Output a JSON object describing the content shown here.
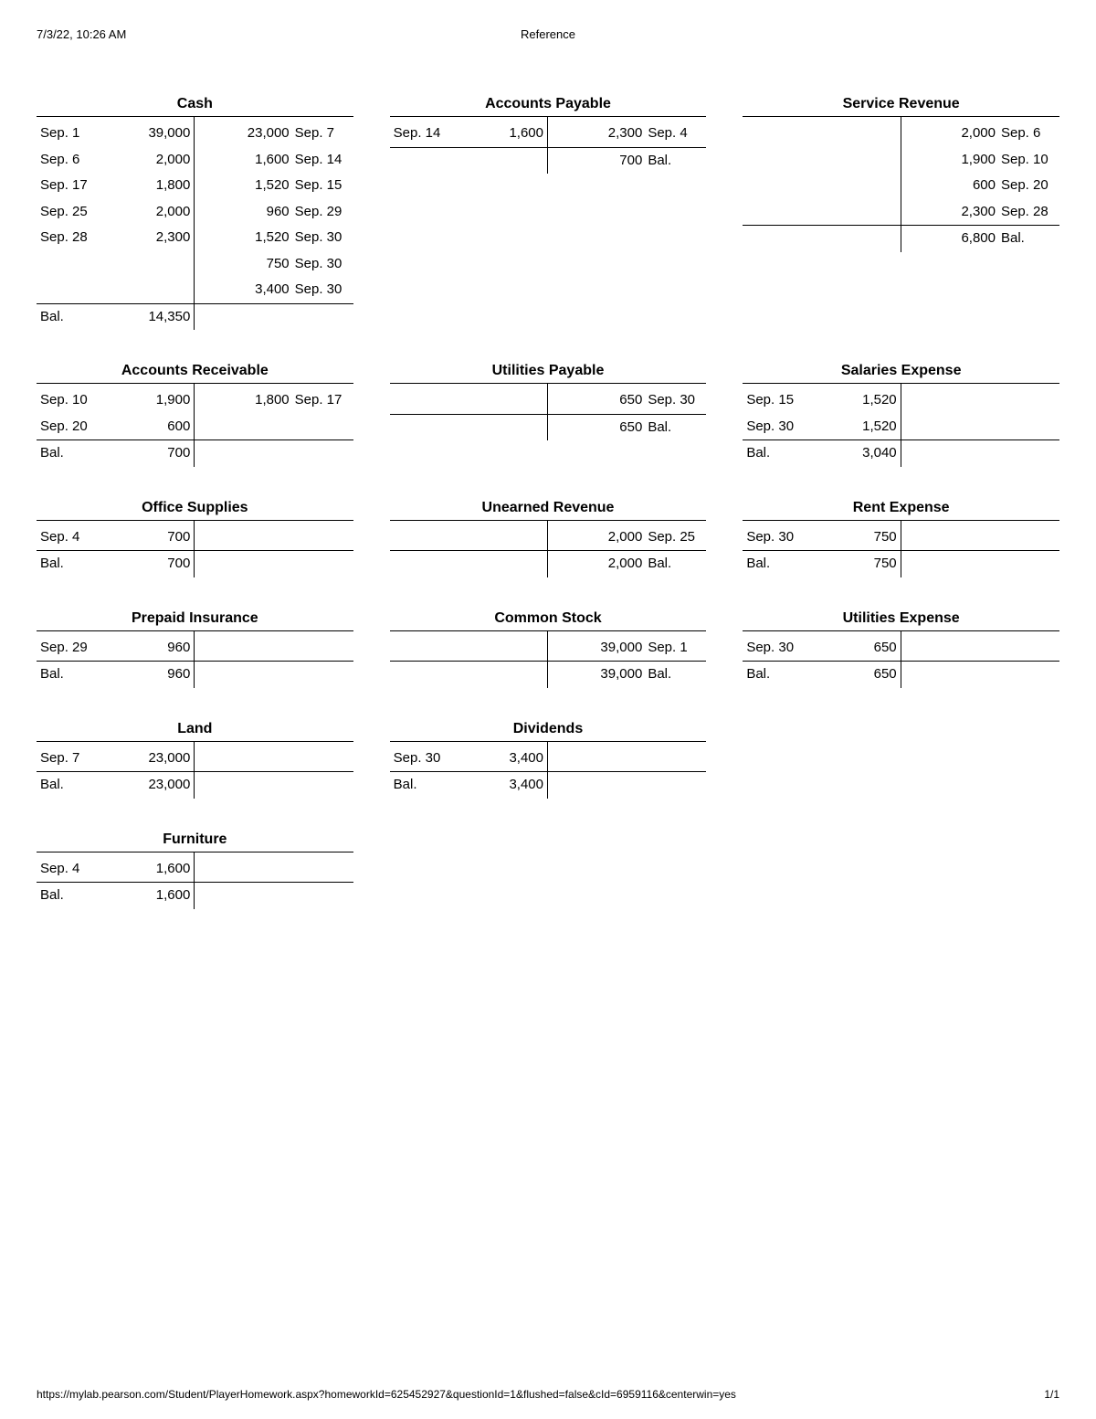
{
  "header": {
    "timestamp": "7/3/22, 10:26 AM",
    "title": "Reference"
  },
  "footer": {
    "url": "https://mylab.pearson.com/Student/PlayerHomework.aspx?homeworkId=625452927&questionId=1&flushed=false&cId=6959116&centerwin=yes",
    "page": "1/1"
  },
  "accounts": [
    {
      "title": "Cash",
      "debits": [
        {
          "date": "Sep. 1",
          "amt": "39,000"
        },
        {
          "date": "Sep. 6",
          "amt": "2,000"
        },
        {
          "date": "Sep. 17",
          "amt": "1,800"
        },
        {
          "date": "Sep. 25",
          "amt": "2,000"
        },
        {
          "date": "Sep. 28",
          "amt": "2,300"
        }
      ],
      "credits": [
        {
          "date": "Sep. 7",
          "amt": "23,000"
        },
        {
          "date": "Sep. 14",
          "amt": "1,600"
        },
        {
          "date": "Sep. 15",
          "amt": "1,520"
        },
        {
          "date": "Sep. 29",
          "amt": "960"
        },
        {
          "date": "Sep. 30",
          "amt": "1,520"
        },
        {
          "date": "Sep. 30",
          "amt": "750"
        },
        {
          "date": "Sep. 30",
          "amt": "3,400"
        }
      ],
      "bal_side": "debit",
      "bal_label": "Bal.",
      "bal_amt": "14,350"
    },
    {
      "title": "Accounts Payable",
      "debits": [
        {
          "date": "Sep. 14",
          "amt": "1,600"
        }
      ],
      "credits": [
        {
          "date": "Sep. 4",
          "amt": "2,300"
        }
      ],
      "bal_side": "credit",
      "bal_label": "Bal.",
      "bal_amt": "700"
    },
    {
      "title": "Service Revenue",
      "debits": [],
      "credits": [
        {
          "date": "Sep. 6",
          "amt": "2,000"
        },
        {
          "date": "Sep. 10",
          "amt": "1,900"
        },
        {
          "date": "Sep. 20",
          "amt": "600"
        },
        {
          "date": "Sep. 28",
          "amt": "2,300"
        }
      ],
      "bal_side": "credit",
      "bal_label": "Bal.",
      "bal_amt": "6,800"
    },
    {
      "title": "Accounts Receivable",
      "debits": [
        {
          "date": "Sep. 10",
          "amt": "1,900"
        },
        {
          "date": "Sep. 20",
          "amt": "600"
        }
      ],
      "credits": [
        {
          "date": "Sep. 17",
          "amt": "1,800"
        }
      ],
      "bal_side": "debit",
      "bal_label": "Bal.",
      "bal_amt": "700"
    },
    {
      "title": "Utilities Payable",
      "debits": [],
      "credits": [
        {
          "date": "Sep. 30",
          "amt": "650"
        }
      ],
      "bal_side": "credit",
      "bal_label": "Bal.",
      "bal_amt": "650"
    },
    {
      "title": "Salaries Expense",
      "debits": [
        {
          "date": "Sep. 15",
          "amt": "1,520"
        },
        {
          "date": "Sep. 30",
          "amt": "1,520"
        }
      ],
      "credits": [],
      "bal_side": "debit",
      "bal_label": "Bal.",
      "bal_amt": "3,040"
    },
    {
      "title": "Office Supplies",
      "debits": [
        {
          "date": "Sep. 4",
          "amt": "700"
        }
      ],
      "credits": [],
      "bal_side": "debit",
      "bal_label": "Bal.",
      "bal_amt": "700"
    },
    {
      "title": "Unearned Revenue",
      "debits": [],
      "credits": [
        {
          "date": "Sep. 25",
          "amt": "2,000"
        }
      ],
      "bal_side": "credit",
      "bal_label": "Bal.",
      "bal_amt": "2,000"
    },
    {
      "title": "Rent Expense",
      "debits": [
        {
          "date": "Sep. 30",
          "amt": "750"
        }
      ],
      "credits": [],
      "bal_side": "debit",
      "bal_label": "Bal.",
      "bal_amt": "750"
    },
    {
      "title": "Prepaid Insurance",
      "debits": [
        {
          "date": "Sep. 29",
          "amt": "960"
        }
      ],
      "credits": [],
      "bal_side": "debit",
      "bal_label": "Bal.",
      "bal_amt": "960"
    },
    {
      "title": "Common Stock",
      "debits": [],
      "credits": [
        {
          "date": "Sep. 1",
          "amt": "39,000"
        }
      ],
      "bal_side": "credit",
      "bal_label": "Bal.",
      "bal_amt": "39,000"
    },
    {
      "title": "Utilities Expense",
      "debits": [
        {
          "date": "Sep. 30",
          "amt": "650"
        }
      ],
      "credits": [],
      "bal_side": "debit",
      "bal_label": "Bal.",
      "bal_amt": "650"
    },
    {
      "title": "Land",
      "debits": [
        {
          "date": "Sep. 7",
          "amt": "23,000"
        }
      ],
      "credits": [],
      "bal_side": "debit",
      "bal_label": "Bal.",
      "bal_amt": "23,000"
    },
    {
      "title": "Dividends",
      "debits": [
        {
          "date": "Sep. 30",
          "amt": "3,400"
        }
      ],
      "credits": [],
      "bal_side": "debit",
      "bal_label": "Bal.",
      "bal_amt": "3,400"
    },
    {
      "blank": true
    },
    {
      "title": "Furniture",
      "debits": [
        {
          "date": "Sep. 4",
          "amt": "1,600"
        }
      ],
      "credits": [],
      "bal_side": "debit",
      "bal_label": "Bal.",
      "bal_amt": "1,600"
    }
  ]
}
